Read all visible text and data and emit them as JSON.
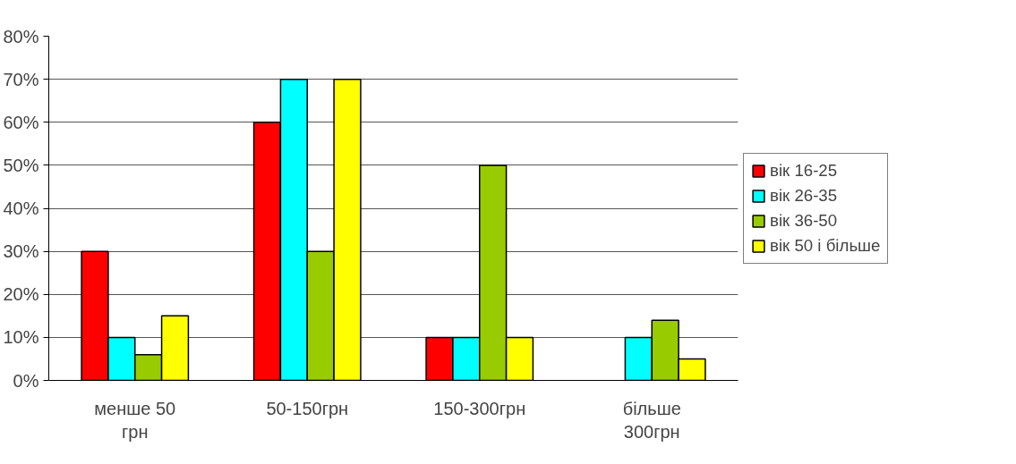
{
  "chart_data": {
    "type": "bar",
    "categories": [
      "менше 50\nгрн",
      "50-150грн",
      "150-300грн",
      "більше\n300грн"
    ],
    "series": [
      {
        "name": "вік 16-25",
        "color": "#ff0000",
        "values": [
          30,
          60,
          10,
          null
        ]
      },
      {
        "name": "вік 26-35",
        "color": "#00ffff",
        "values": [
          10,
          70,
          10,
          10
        ]
      },
      {
        "name": "вік 36-50",
        "color": "#99cc00",
        "values": [
          6,
          30,
          50,
          14
        ]
      },
      {
        "name": "вік 50 і більше",
        "color": "#ffff00",
        "values": [
          15,
          70,
          10,
          5
        ]
      }
    ],
    "ylim": [
      0,
      80
    ],
    "yticks": [
      {
        "value": 0,
        "label": "0%"
      },
      {
        "value": 10,
        "label": "10%"
      },
      {
        "value": 20,
        "label": "20%"
      },
      {
        "value": 30,
        "label": "30%"
      },
      {
        "value": 40,
        "label": "40%"
      },
      {
        "value": 50,
        "label": "50%"
      },
      {
        "value": 60,
        "label": "60%"
      },
      {
        "value": 70,
        "label": "70%"
      },
      {
        "value": 80,
        "label": "80%"
      }
    ],
    "grid": "y",
    "legend": "right"
  }
}
